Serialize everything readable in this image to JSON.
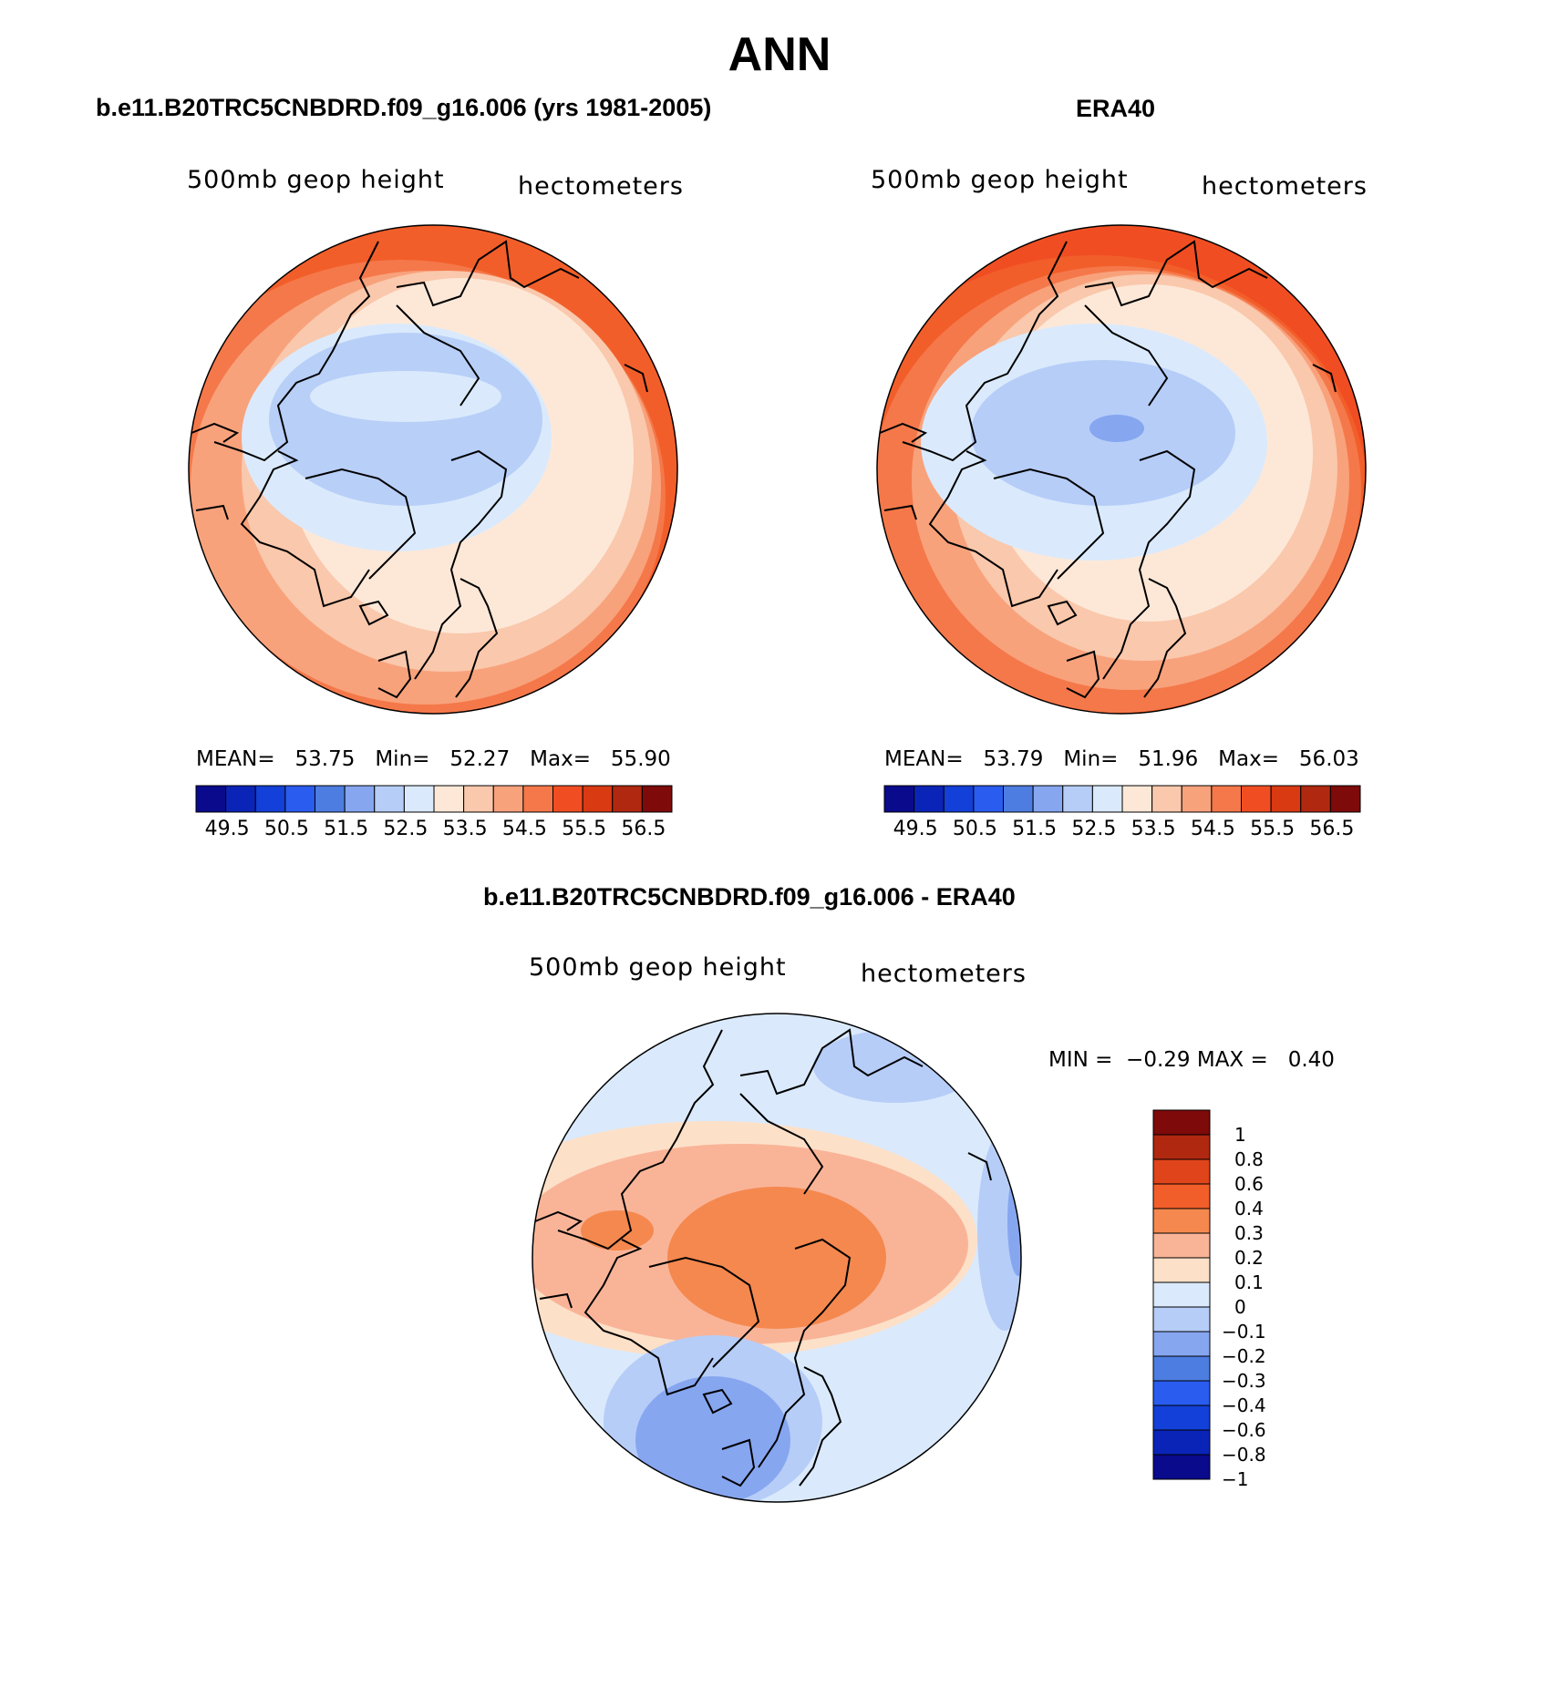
{
  "figure": {
    "title": "ANN"
  },
  "panels": [
    {
      "title": "b.e11.B20TRC5CNBDRD.f09_g16.006 (yrs 1981-2005)",
      "left_label": "500mb geop height",
      "right_label": "hectometers",
      "stats": {
        "mean_label": "MEAN=",
        "mean": "53.75",
        "min_label": "Min=",
        "min": "52.27",
        "max_label": "Max=",
        "max": "55.90"
      }
    },
    {
      "title": "ERA40",
      "left_label": "500mb geop height",
      "right_label": "hectometers",
      "stats": {
        "mean_label": "MEAN=",
        "mean": "53.79",
        "min_label": "Min=",
        "min": "51.96",
        "max_label": "Max=",
        "max": "56.03"
      }
    },
    {
      "title": "b.e11.B20TRC5CNBDRD.f09_g16.006 - ERA40",
      "left_label": "500mb geop height",
      "right_label": "hectometers",
      "stats": {
        "min_label": "MIN =",
        "min": "−0.29",
        "max_label": "MAX =",
        "max": "0.40"
      }
    }
  ],
  "abs_colorbar": {
    "colors": [
      "#0a0a8c",
      "#0b24b8",
      "#1240d8",
      "#2a5cf0",
      "#4d7de0",
      "#86a6f0",
      "#b6cdf8",
      "#daeafc",
      "#fde8d8",
      "#fac8ac",
      "#f8a27c",
      "#f5784a",
      "#f04e22",
      "#d93a12",
      "#b02810",
      "#7e0a0a"
    ],
    "tick_labels": [
      "49.5",
      "50.5",
      "51.5",
      "52.5",
      "53.5",
      "54.5",
      "55.5",
      "56.5"
    ]
  },
  "diff_colorbar": {
    "colors": [
      "#7e0a0a",
      "#b02810",
      "#e0441a",
      "#f25e2a",
      "#f5884e",
      "#f9b498",
      "#fde0c8",
      "#daeafc",
      "#b6cdf8",
      "#86a6f0",
      "#4d7de0",
      "#2a5cf0",
      "#1240d8",
      "#0b24b8",
      "#0a0a8c"
    ],
    "tick_labels": [
      "1",
      "0.8",
      "0.6",
      "0.4",
      "0.3",
      "0.2",
      "0.1",
      "0",
      "−0.1",
      "−0.2",
      "−0.3",
      "−0.4",
      "−0.6",
      "−0.8",
      "−1"
    ]
  }
}
